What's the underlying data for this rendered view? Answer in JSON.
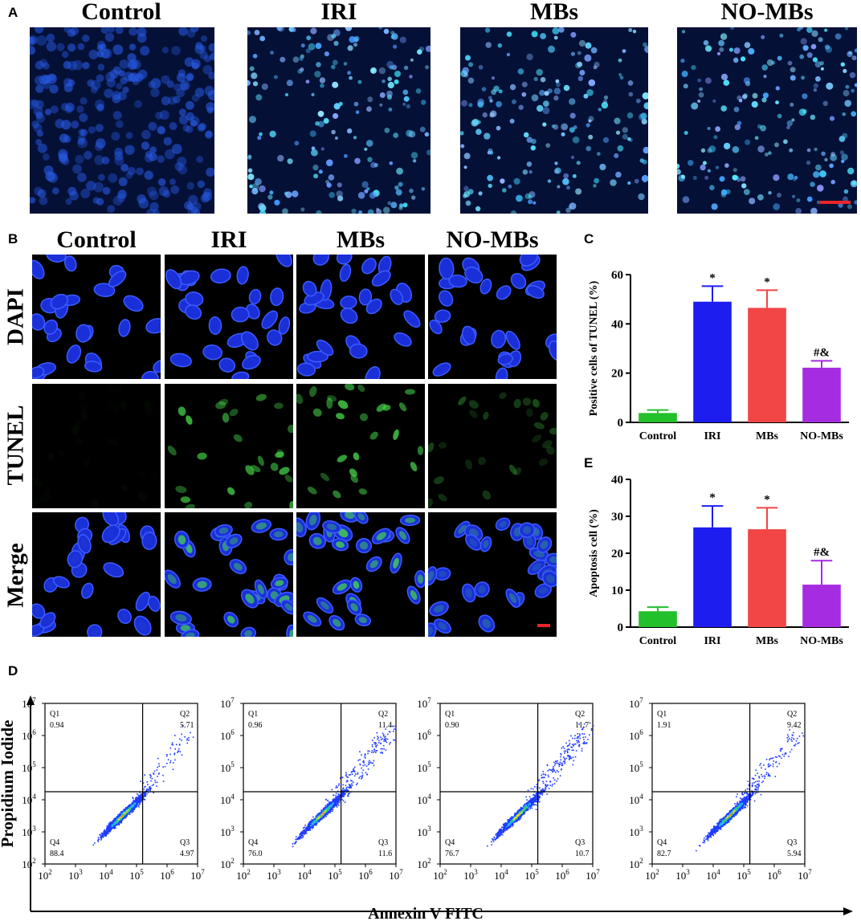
{
  "panel_labels": {
    "a": "A",
    "b": "B",
    "c": "C",
    "d": "D",
    "e": "E"
  },
  "groups": [
    "Control",
    "IRI",
    "MBs",
    "NO-MBs"
  ],
  "panel_b_rows": [
    "DAPI",
    "TUNEL",
    "Merge"
  ],
  "colors": {
    "control": "#22c02a",
    "iri": "#1d1df0",
    "mbs": "#f24545",
    "nombs": "#a52ce0",
    "scalebar": "#e8262a",
    "nuclei": "#2a43e8",
    "tunel": "#46d64a"
  },
  "chart_data": [
    {
      "panel": "C",
      "type": "bar",
      "categories": [
        "Control",
        "IRI",
        "MBs",
        "NO-MBs"
      ],
      "values": [
        3.8,
        49.0,
        46.5,
        22.2
      ],
      "errors": [
        1.2,
        6.3,
        7.2,
        2.8
      ],
      "annotations": [
        "",
        "*",
        "*",
        "#&"
      ],
      "ylabel": "Positive cells of TUNEL (%)",
      "ylim": [
        0,
        60
      ],
      "yticks": [
        0,
        20,
        40,
        60
      ]
    },
    {
      "panel": "E",
      "type": "bar",
      "categories": [
        "Control",
        "IRI",
        "MBs",
        "NO-MBs"
      ],
      "values": [
        4.3,
        27.0,
        26.5,
        11.5
      ],
      "errors": [
        1.1,
        5.8,
        5.8,
        6.5
      ],
      "annotations": [
        "",
        "*",
        "*",
        "#&"
      ],
      "ylabel": "Apoptosis cell (%)",
      "ylim": [
        0,
        40
      ],
      "yticks": [
        0,
        10,
        20,
        30,
        40
      ]
    },
    {
      "panel": "D",
      "type": "scatter",
      "xlabel": "Annexin V FITC",
      "ylabel": "Propidium Iodide",
      "axis_exponents": [
        2,
        3,
        4,
        5,
        6,
        7
      ],
      "axis_base": "10",
      "plots": [
        {
          "group": "Control",
          "quadrants": {
            "Q1": "0.94",
            "Q2": "5.71",
            "Q3": "4.97",
            "Q4": "88.4"
          }
        },
        {
          "group": "IRI",
          "quadrants": {
            "Q1": "0.96",
            "Q2": "11.4",
            "Q3": "11.6",
            "Q4": "76.0"
          }
        },
        {
          "group": "MBs",
          "quadrants": {
            "Q1": "0.90",
            "Q2": "11.7",
            "Q3": "10.7",
            "Q4": "76.7"
          }
        },
        {
          "group": "NO-MBs",
          "quadrants": {
            "Q1": "1.91",
            "Q2": "9.42",
            "Q3": "5.94",
            "Q4": "82.7"
          }
        }
      ]
    }
  ]
}
